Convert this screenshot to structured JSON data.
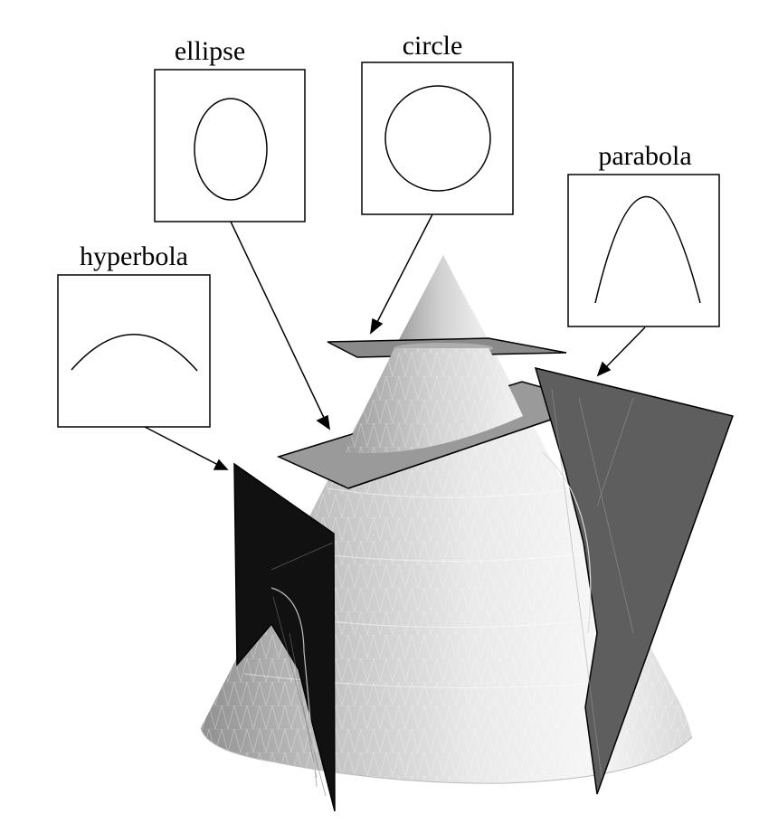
{
  "labels": {
    "ellipse": "ellipse",
    "circle": "circle",
    "parabola": "parabola",
    "hyperbola": "hyperbola"
  },
  "colors": {
    "background": "#ffffff",
    "stroke": "#000000",
    "cone_light": "#f4f4f4",
    "cone_mid": "#c8c8c8",
    "cone_dark": "#8f8f8f",
    "plane_gray": "#8a8a8a",
    "plane_dark_gray": "#5e5e5e",
    "plane_black": "#111111"
  }
}
